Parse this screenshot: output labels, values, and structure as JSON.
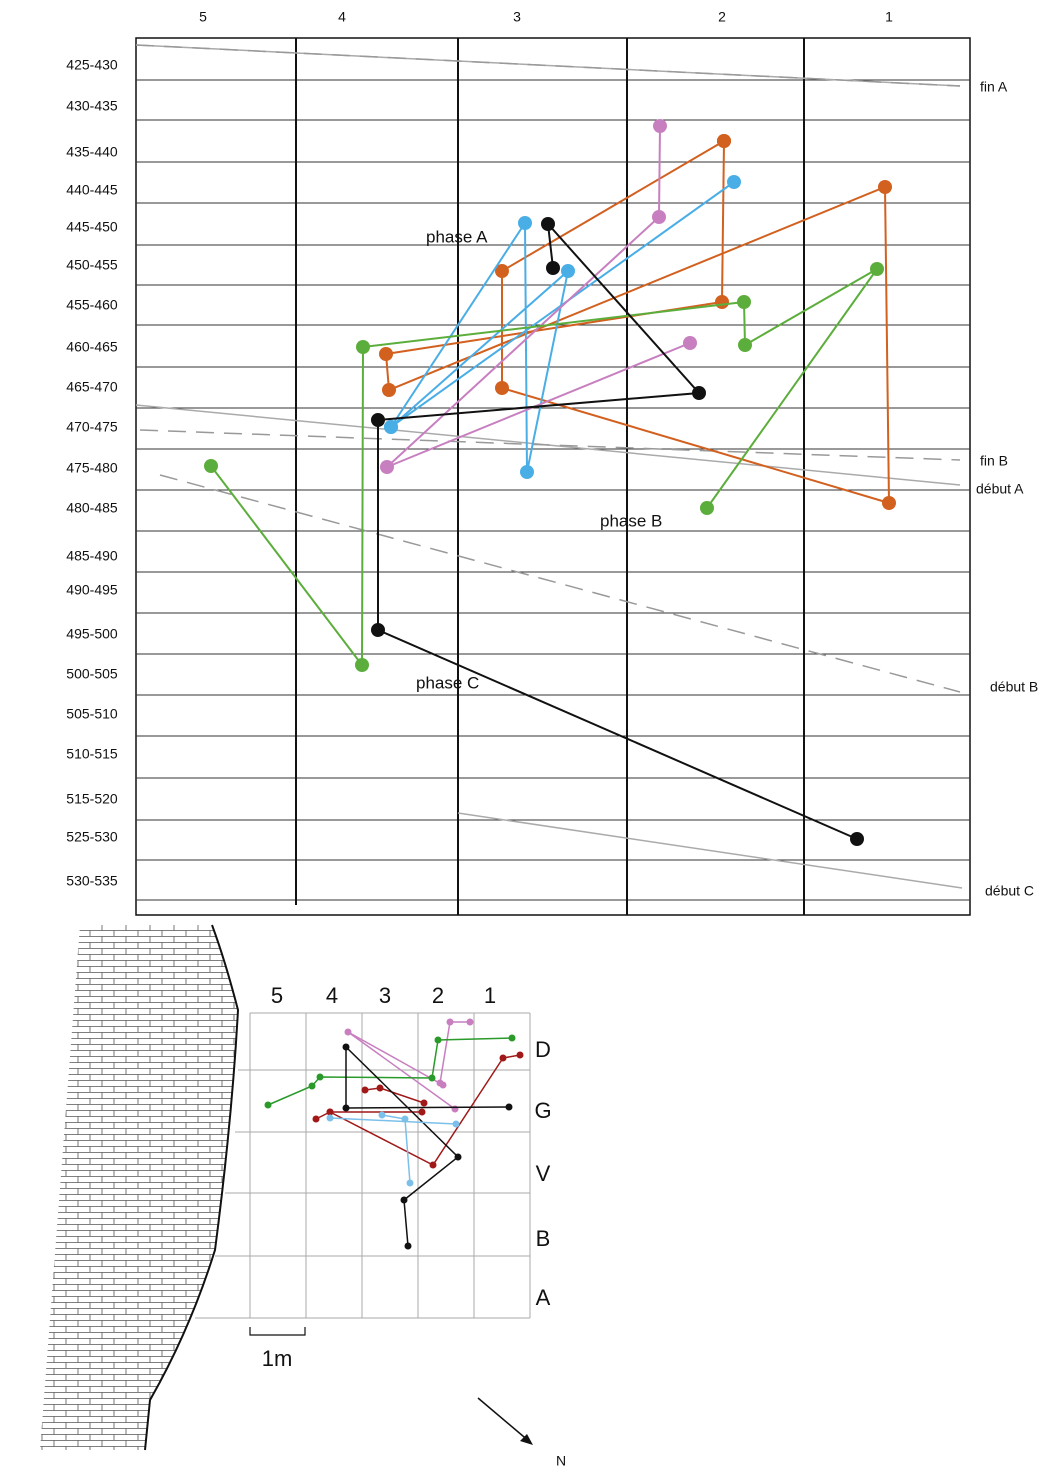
{
  "profile": {
    "columns": [
      "5",
      "4",
      "3",
      "2",
      "1"
    ],
    "rows": [
      "425-430",
      "430-435",
      "435-440",
      "440-445",
      "445-450",
      "450-455",
      "455-460",
      "460-465",
      "465-470",
      "470-475",
      "475-480",
      "480-485",
      "485-490",
      "490-495",
      "495-500",
      "500-505",
      "505-510",
      "510-515",
      "515-520",
      "525-530",
      "530-535"
    ],
    "annotations": {
      "fin_a": "fin A",
      "fin_b": "fin B",
      "debut_a": "début A",
      "debut_b": "début B",
      "debut_c": "début C"
    },
    "phases": [
      "phase A",
      "phase B",
      "phase C"
    ]
  },
  "plan": {
    "columns": [
      "5",
      "4",
      "3",
      "2",
      "1"
    ],
    "rows": [
      "D",
      "G",
      "V",
      "B",
      "A"
    ],
    "scale": "1m",
    "north": "N"
  }
}
